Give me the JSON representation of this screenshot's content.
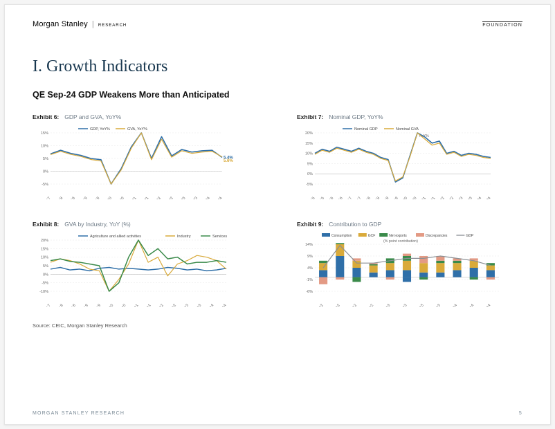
{
  "header": {
    "brand": "Morgan Stanley",
    "brand_sub": "RESEARCH",
    "right": "FOUNDATION"
  },
  "section_title": "I. Growth Indicators",
  "subtitle": "QE Sep-24 GDP Weakens More than Anticipated",
  "exhibits": {
    "e6": {
      "num": "Exhibit 6:",
      "title": "GDP and GVA, YoY%",
      "type": "line",
      "xlabels": [
        "Sep-17",
        "Mar-18",
        "Sep-18",
        "Mar-19",
        "Sep-19",
        "Mar-20",
        "Sep-20",
        "Mar-21",
        "Sep-21",
        "Mar-22",
        "Sep-22",
        "Mar-23",
        "Sep-23",
        "Mar-24",
        "Sep-24"
      ],
      "ylim": [
        -5,
        15
      ],
      "yticks": [
        -5,
        0,
        5,
        10,
        15
      ],
      "series": [
        {
          "name": "GDP, YoY%",
          "color": "#2f6fa8",
          "width": 1.6,
          "values": [
            6.8,
            8.2,
            7.0,
            6.2,
            5.0,
            4.5,
            -9,
            1,
            9.5,
            22,
            5,
            13.5,
            6,
            8.5,
            7.5,
            8,
            8.2,
            5.4
          ]
        },
        {
          "name": "GVA, YoY%",
          "color": "#d9aa3a",
          "width": 1.2,
          "values": [
            6.5,
            7.8,
            6.6,
            5.8,
            4.6,
            4.0,
            -8,
            0.5,
            9,
            21,
            4.5,
            12.5,
            5.5,
            8,
            7,
            7.5,
            7.8,
            5.6
          ]
        }
      ],
      "end_labels": [
        {
          "text": "5.4%",
          "color": "#2f6fa8",
          "y": 5.4
        },
        {
          "text": "5.6%",
          "color": "#d9aa3a",
          "y": 4.2
        }
      ],
      "bg": "#ffffff",
      "grid": "#e7e7e7",
      "axis_font": 5.5
    },
    "e7": {
      "num": "Exhibit 7:",
      "title": "Nominal GDP, YoY%",
      "type": "line",
      "xlabels": [
        "Mar-15",
        "Sep-15",
        "Mar-16",
        "Sep-16",
        "Mar-17",
        "Sep-17",
        "Mar-18",
        "Sep-18",
        "Mar-19",
        "Sep-19",
        "Mar-20",
        "Sep-20",
        "Mar-21",
        "Sep-21",
        "Mar-22",
        "Sep-22",
        "Mar-23",
        "Sep-23",
        "Mar-24",
        "Sep-24"
      ],
      "ylim": [
        -5,
        20
      ],
      "yticks": [
        -5,
        0,
        5,
        10,
        15,
        20
      ],
      "yoy_label": "YoY%",
      "series": [
        {
          "name": "Nominal GDP",
          "color": "#2f6fa8",
          "width": 1.6,
          "values": [
            10,
            12,
            11,
            13,
            12,
            11,
            12.5,
            11,
            10,
            8,
            7,
            -4,
            -2,
            9,
            26,
            18,
            15,
            16,
            10,
            11,
            9,
            10,
            9.5,
            8.5,
            8
          ]
        },
        {
          "name": "Nominal GVA",
          "color": "#d9aa3a",
          "width": 1.2,
          "values": [
            9.5,
            11.5,
            10.5,
            12.5,
            11.5,
            10.5,
            12,
            10.5,
            9.5,
            7.5,
            6.5,
            -3.5,
            -1.5,
            8.5,
            25,
            17,
            14,
            15,
            9.5,
            10.5,
            8.5,
            9.5,
            9,
            8,
            7.5
          ]
        }
      ],
      "bg": "#ffffff",
      "grid": "#e7e7e7",
      "axis_font": 5.5
    },
    "e8": {
      "num": "Exhibit 8:",
      "title": "GVA by Industry, YoY (%)",
      "type": "line",
      "xlabels": [
        "Sep-17",
        "Mar-18",
        "Sep-18",
        "Mar-19",
        "Sep-19",
        "Mar-20",
        "Sep-20",
        "Mar-21",
        "Sep-21",
        "Mar-22",
        "Sep-22",
        "Mar-23",
        "Sep-23",
        "Mar-24",
        "Sep-24"
      ],
      "ylim": [
        -10,
        20
      ],
      "yticks": [
        -10,
        -5,
        0,
        5,
        10,
        15,
        20
      ],
      "series": [
        {
          "name": "Agriculture and allied activities",
          "color": "#2f6fa8",
          "width": 1.5,
          "values": [
            3,
            4,
            2.5,
            3,
            2,
            3.5,
            4,
            3,
            3.5,
            3,
            2.5,
            3,
            4,
            3.5,
            2.5,
            3,
            2,
            2.5,
            3.5
          ]
        },
        {
          "name": "Industry",
          "color": "#d9aa3a",
          "width": 1.2,
          "values": [
            7,
            9,
            8,
            6,
            3,
            2,
            -12,
            -3,
            6,
            38,
            7,
            10,
            -1,
            6,
            8,
            11,
            10,
            8,
            3
          ]
        },
        {
          "name": "Services",
          "color": "#3a8a4a",
          "width": 1.5,
          "values": [
            8,
            9,
            7.5,
            7,
            6,
            5,
            -10,
            -5,
            10,
            20,
            11,
            15,
            9,
            10,
            6,
            7,
            7,
            8,
            7
          ]
        }
      ],
      "bg": "#ffffff",
      "grid": "#e7e7e7",
      "axis_font": 5.5
    },
    "e9": {
      "num": "Exhibit 9:",
      "title": "Contribution to GDP",
      "type": "stacked_bar_line",
      "xlabels": [
        "Mar-22",
        "Jun-22",
        "Sep-22",
        "Dec-22",
        "Mar-23",
        "Jun-23",
        "Sep-23",
        "Dec-23",
        "Mar-24",
        "Jun-24",
        "Sep-24"
      ],
      "ylim": [
        -6,
        14
      ],
      "yticks": [
        -6,
        -1,
        4,
        9,
        14
      ],
      "sublabel": "(% point contribution)",
      "legend": [
        {
          "name": "Consumption",
          "color": "#2f6fa8"
        },
        {
          "name": "GCF",
          "color": "#d9aa3a"
        },
        {
          "name": "Net exports",
          "color": "#3a8a4a"
        },
        {
          "name": "Discrepancies",
          "color": "#e39a84"
        },
        {
          "name": "GDP",
          "color": "#8a8f94"
        }
      ],
      "bars": [
        {
          "pos": [
            {
              "c": "#2f6fa8",
              "v": 3
            },
            {
              "c": "#d9aa3a",
              "v": 3
            },
            {
              "c": "#3a8a4a",
              "v": 1
            }
          ],
          "neg": [
            {
              "c": "#e39a84",
              "v": -3
            }
          ]
        },
        {
          "pos": [
            {
              "c": "#2f6fa8",
              "v": 9
            },
            {
              "c": "#d9aa3a",
              "v": 5
            },
            {
              "c": "#3a8a4a",
              "v": 0.5
            }
          ],
          "neg": [
            {
              "c": "#e39a84",
              "v": -1
            }
          ]
        },
        {
          "pos": [
            {
              "c": "#2f6fa8",
              "v": 4
            },
            {
              "c": "#d9aa3a",
              "v": 3
            },
            {
              "c": "#e39a84",
              "v": 1
            }
          ],
          "neg": [
            {
              "c": "#3a8a4a",
              "v": -2
            }
          ]
        },
        {
          "pos": [
            {
              "c": "#2f6fa8",
              "v": 2
            },
            {
              "c": "#d9aa3a",
              "v": 3
            },
            {
              "c": "#3a8a4a",
              "v": 0.5
            },
            {
              "c": "#e39a84",
              "v": 0.5
            }
          ],
          "neg": []
        },
        {
          "pos": [
            {
              "c": "#2f6fa8",
              "v": 3
            },
            {
              "c": "#d9aa3a",
              "v": 3
            },
            {
              "c": "#3a8a4a",
              "v": 2
            }
          ],
          "neg": [
            {
              "c": "#e39a84",
              "v": -1
            }
          ]
        },
        {
          "pos": [
            {
              "c": "#2f6fa8",
              "v": 3
            },
            {
              "c": "#d9aa3a",
              "v": 4
            },
            {
              "c": "#3a8a4a",
              "v": 2
            },
            {
              "c": "#e39a84",
              "v": 1
            }
          ],
          "neg": [
            {
              "c": "#2f6fa8",
              "v": -2
            }
          ]
        },
        {
          "pos": [
            {
              "c": "#2f6fa8",
              "v": 2
            },
            {
              "c": "#d9aa3a",
              "v": 4
            },
            {
              "c": "#e39a84",
              "v": 3
            }
          ],
          "neg": [
            {
              "c": "#3a8a4a",
              "v": -1
            }
          ]
        },
        {
          "pos": [
            {
              "c": "#2f6fa8",
              "v": 2
            },
            {
              "c": "#d9aa3a",
              "v": 4
            },
            {
              "c": "#3a8a4a",
              "v": 1
            },
            {
              "c": "#e39a84",
              "v": 2
            }
          ],
          "neg": []
        },
        {
          "pos": [
            {
              "c": "#2f6fa8",
              "v": 3
            },
            {
              "c": "#d9aa3a",
              "v": 3
            },
            {
              "c": "#3a8a4a",
              "v": 1
            },
            {
              "c": "#e39a84",
              "v": 1
            }
          ],
          "neg": []
        },
        {
          "pos": [
            {
              "c": "#2f6fa8",
              "v": 4
            },
            {
              "c": "#d9aa3a",
              "v": 3
            },
            {
              "c": "#e39a84",
              "v": 1
            }
          ],
          "neg": [
            {
              "c": "#3a8a4a",
              "v": -1
            }
          ]
        },
        {
          "pos": [
            {
              "c": "#2f6fa8",
              "v": 3
            },
            {
              "c": "#d9aa3a",
              "v": 2
            },
            {
              "c": "#3a8a4a",
              "v": 1
            }
          ],
          "neg": [
            {
              "c": "#e39a84",
              "v": -1
            }
          ]
        }
      ],
      "line": {
        "color": "#8a8f94",
        "width": 1.2,
        "values": [
          4,
          13.5,
          6,
          6,
          7,
          8,
          8,
          9,
          8,
          7,
          5
        ]
      },
      "bg": "#ffffff",
      "grid": "#e7e7e7",
      "axis_font": 5.5
    }
  },
  "source": "Source: CEIC, Morgan Stanley Research",
  "footer": {
    "left": "MORGAN STANLEY RESEARCH",
    "page": "5"
  }
}
